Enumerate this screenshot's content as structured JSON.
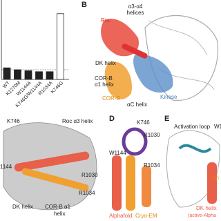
{
  "panel_a": {
    "categories": [
      "WT",
      "K1270M",
      "W1144A",
      "K746G/W1144A",
      "R1034A",
      "K746G"
    ],
    "values": [
      1.2,
      1.0,
      0.9,
      0.8,
      0.8,
      6.8
    ]
  },
  "panel_b": {
    "label": "B",
    "roc": "Roc",
    "helices": [
      "α3-α4",
      "helices"
    ],
    "dk_helix": "DK helix",
    "corb_a1": [
      "COR-B",
      "α1 helix"
    ],
    "corb": "COR-B",
    "ac_helix": "αC helix",
    "kinase": "Kinase"
  },
  "panel_c": {
    "k746": "K746",
    "roc_a3": "Roc α3 helix",
    "w1144": "1144",
    "r1030": "R1030",
    "r1034": "R1034",
    "dk_helix": "DK helix",
    "corb_a1": [
      "COR-B α1",
      "helix"
    ]
  },
  "panel_d": {
    "label": "D",
    "k746": "K746",
    "r1030": "R1030",
    "w1144": "W1144",
    "r1034": "R1034",
    "alphafold": "Alphafold",
    "cryoem": "Cryo-EM"
  },
  "panel_e": {
    "label": "E",
    "activation_loop": "Activation loop",
    "w": "W1",
    "in": "(in",
    "dk_helix": "DK helix",
    "active": "(active-Alpha"
  }
}
